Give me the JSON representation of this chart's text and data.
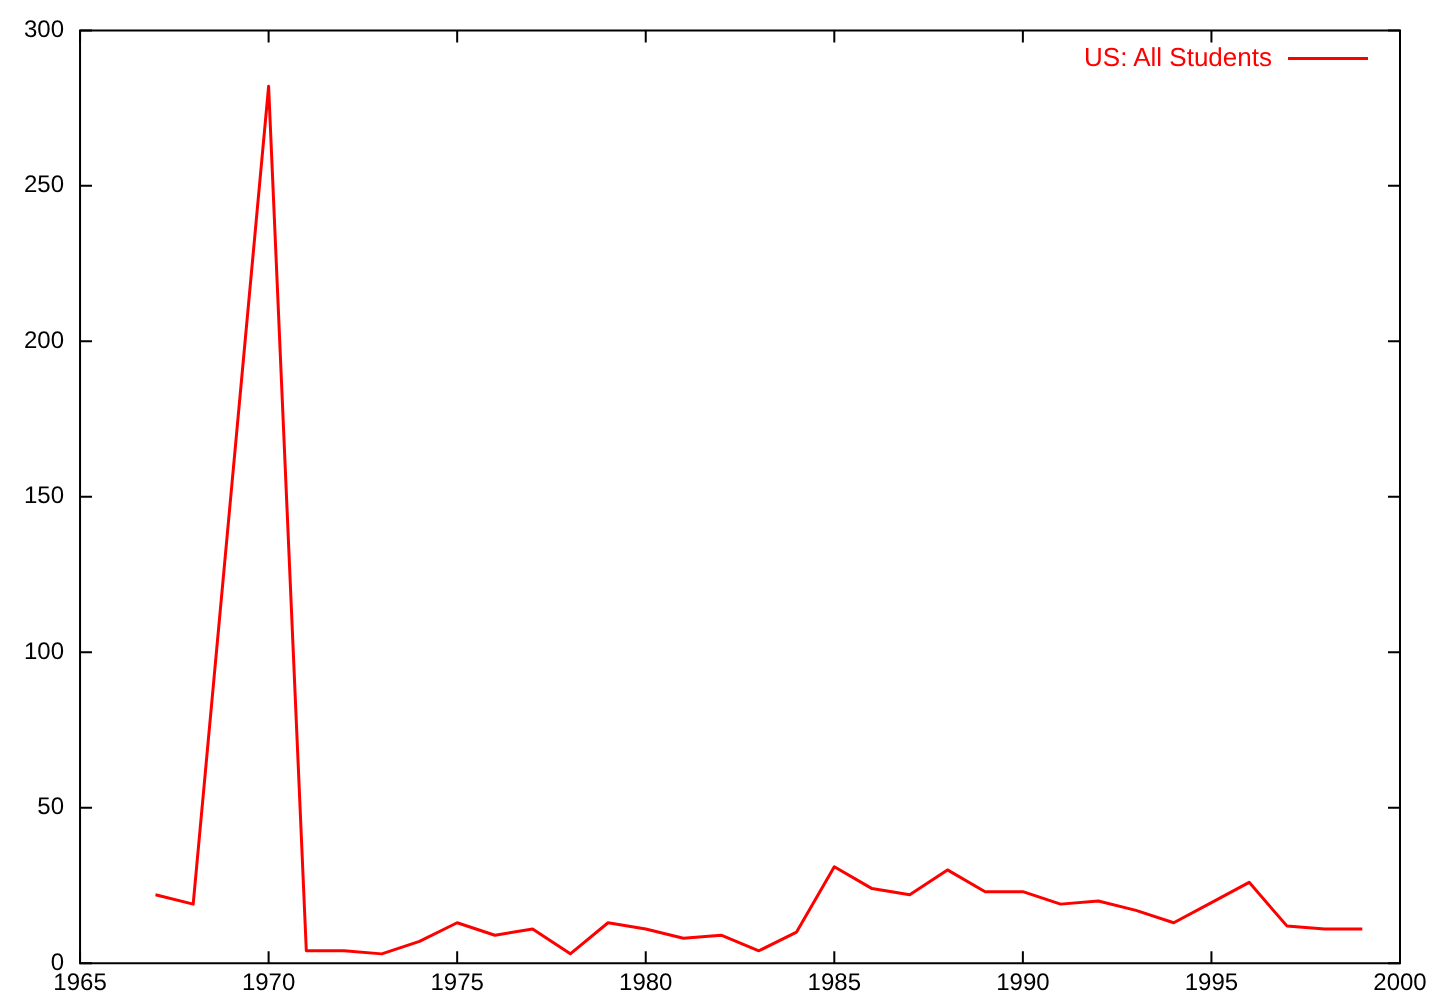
{
  "chart_data": {
    "type": "line",
    "x": [
      1967,
      1968,
      1970,
      1971,
      1972,
      1973,
      1974,
      1975,
      1976,
      1977,
      1978,
      1979,
      1980,
      1981,
      1982,
      1983,
      1984,
      1985,
      1986,
      1987,
      1988,
      1989,
      1990,
      1991,
      1992,
      1993,
      1994,
      1995,
      1996,
      1997,
      1998,
      1999
    ],
    "series": [
      {
        "name": "US: All Students",
        "color": "#ff0000",
        "values": [
          22,
          19,
          282,
          4,
          4,
          3,
          7,
          13,
          9,
          11,
          3,
          13,
          11,
          8,
          9,
          4,
          10,
          31,
          24,
          22,
          30,
          23,
          23,
          19,
          20,
          17,
          13,
          19.5,
          26,
          12,
          11,
          11
        ]
      }
    ],
    "xlim": [
      1965,
      2000
    ],
    "xticks": [
      1965,
      1970,
      1975,
      1980,
      1985,
      1990,
      1995,
      2000
    ],
    "ylim": [
      0,
      300
    ],
    "yticks": [
      0,
      50,
      100,
      150,
      200,
      250,
      300
    ],
    "grid": false,
    "legend": "top right",
    "marker": "none",
    "line_style": "solid"
  }
}
